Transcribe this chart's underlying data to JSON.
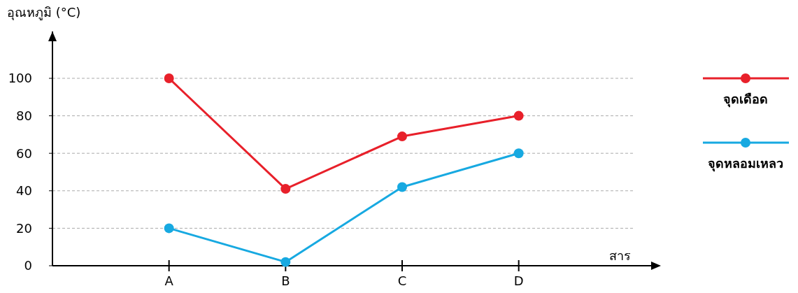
{
  "chart_data": {
    "type": "line",
    "xlabel": "สาร",
    "ylabel": "อุณหภูมิ (°C)",
    "categories": [
      "A",
      "B",
      "C",
      "D"
    ],
    "series": [
      {
        "name": "จุดเดือด",
        "color": "#e8202a",
        "values": [
          100,
          41,
          69,
          80
        ]
      },
      {
        "name": "จุดหลอมเหลว",
        "color": "#17a9e1",
        "values": [
          20,
          2,
          42,
          60
        ]
      }
    ],
    "ylim": [
      0,
      125
    ],
    "yticks": [
      0,
      20,
      40,
      60,
      80,
      100
    ],
    "grid": "y",
    "legend": "right",
    "marker": "circle",
    "line_style": "solid"
  }
}
